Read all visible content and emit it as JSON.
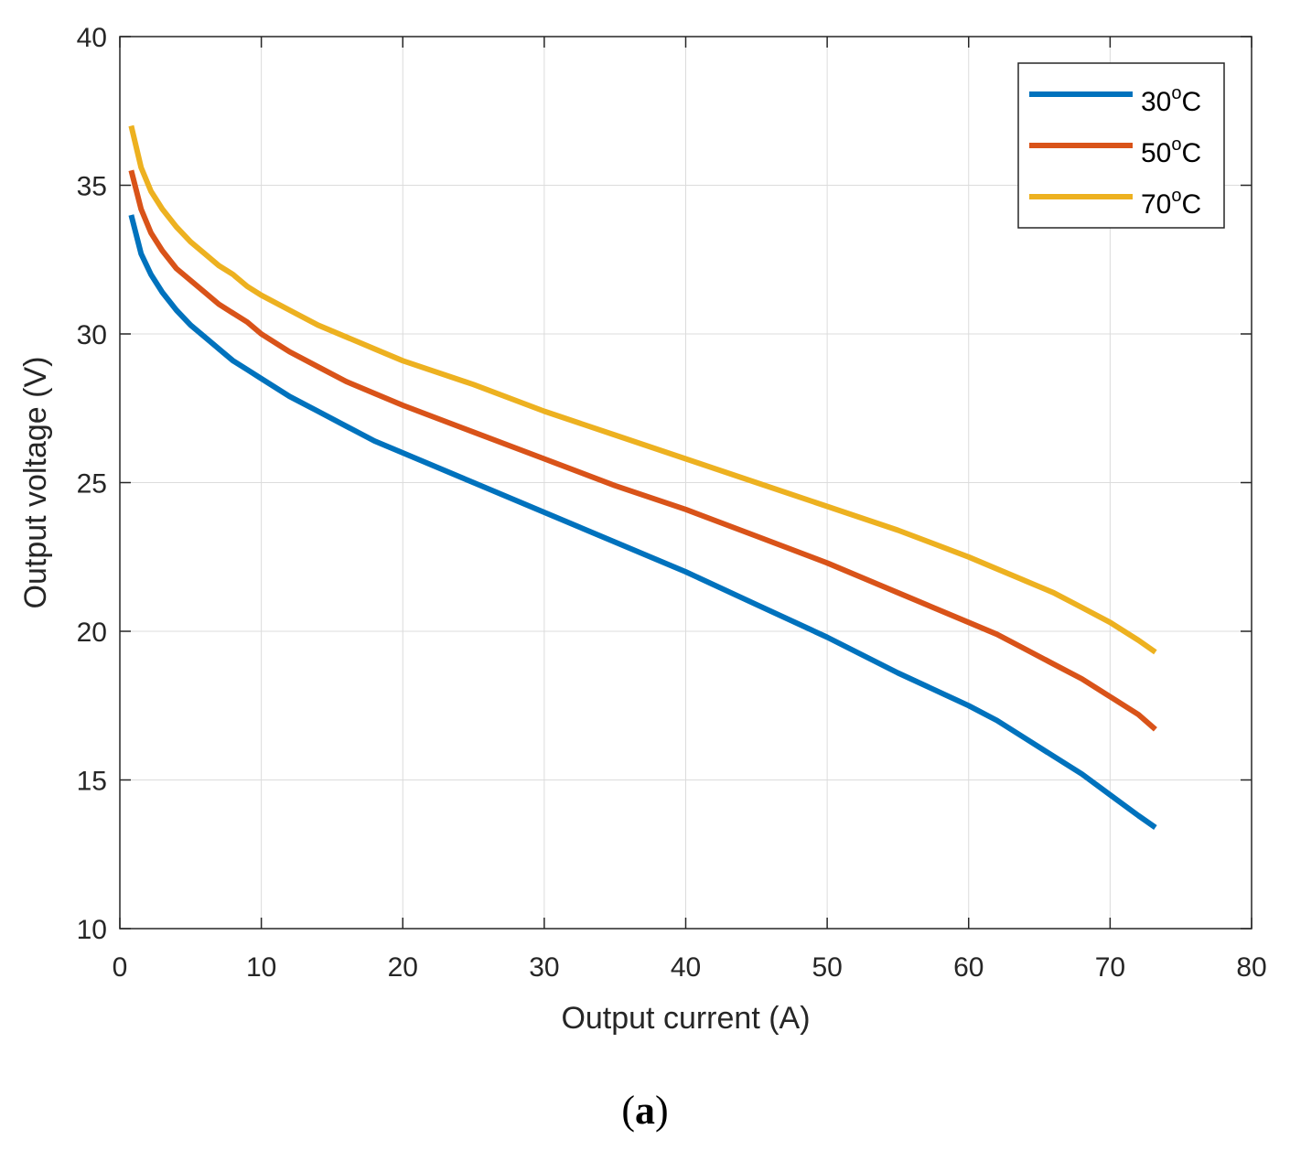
{
  "chart_data": {
    "type": "line",
    "xlabel": "Output current (A)",
    "ylabel": "Output voltage (V)",
    "xlim": [
      0,
      80
    ],
    "ylim": [
      10,
      40
    ],
    "xticks": [
      0,
      10,
      20,
      30,
      40,
      50,
      60,
      70,
      80
    ],
    "yticks": [
      10,
      15,
      20,
      25,
      30,
      35,
      40
    ],
    "grid": true,
    "legend_position": "top-right",
    "series": [
      {
        "name": "30oC",
        "label_main": "30",
        "label_sup": "o",
        "label_unit": "C",
        "color": "#0072BD",
        "x": [
          0.8,
          1.5,
          2.2,
          3,
          4,
          5,
          6,
          7,
          8,
          9,
          10,
          12,
          14,
          16,
          18,
          20,
          25,
          30,
          35,
          40,
          45,
          50,
          55,
          60,
          62,
          64,
          66,
          68,
          70,
          72,
          73.2
        ],
        "y": [
          34.0,
          32.7,
          32.0,
          31.4,
          30.8,
          30.3,
          29.9,
          29.5,
          29.1,
          28.8,
          28.5,
          27.9,
          27.4,
          26.9,
          26.4,
          26.0,
          25.0,
          24.0,
          23.0,
          22.0,
          20.9,
          19.8,
          18.6,
          17.5,
          17.0,
          16.4,
          15.8,
          15.2,
          14.5,
          13.8,
          13.4
        ]
      },
      {
        "name": "50oC",
        "label_main": "50",
        "label_sup": "o",
        "label_unit": "C",
        "color": "#D95319",
        "x": [
          0.8,
          1.5,
          2.2,
          3,
          4,
          5,
          6,
          7,
          8,
          9,
          10,
          12,
          14,
          16,
          18,
          20,
          25,
          30,
          35,
          40,
          45,
          50,
          55,
          60,
          62,
          64,
          66,
          68,
          70,
          72,
          73.2
        ],
        "y": [
          35.5,
          34.2,
          33.4,
          32.8,
          32.2,
          31.8,
          31.4,
          31.0,
          30.7,
          30.4,
          30.0,
          29.4,
          28.9,
          28.4,
          28.0,
          27.6,
          26.7,
          25.8,
          24.9,
          24.1,
          23.2,
          22.3,
          21.3,
          20.3,
          19.9,
          19.4,
          18.9,
          18.4,
          17.8,
          17.2,
          16.7
        ]
      },
      {
        "name": "70oC",
        "label_main": "70",
        "label_sup": "o",
        "label_unit": "C",
        "color": "#EDB120",
        "x": [
          0.8,
          1.5,
          2.2,
          3,
          4,
          5,
          6,
          7,
          8,
          9,
          10,
          12,
          14,
          16,
          18,
          20,
          25,
          30,
          35,
          40,
          45,
          50,
          55,
          60,
          62,
          64,
          66,
          68,
          70,
          72,
          73.2
        ],
        "y": [
          37.0,
          35.6,
          34.8,
          34.2,
          33.6,
          33.1,
          32.7,
          32.3,
          32.0,
          31.6,
          31.3,
          30.8,
          30.3,
          29.9,
          29.5,
          29.1,
          28.3,
          27.4,
          26.6,
          25.8,
          25.0,
          24.2,
          23.4,
          22.5,
          22.1,
          21.7,
          21.3,
          20.8,
          20.3,
          19.7,
          19.3
        ]
      }
    ]
  },
  "caption": {
    "open": "(",
    "letter": "a",
    "close": ")"
  }
}
